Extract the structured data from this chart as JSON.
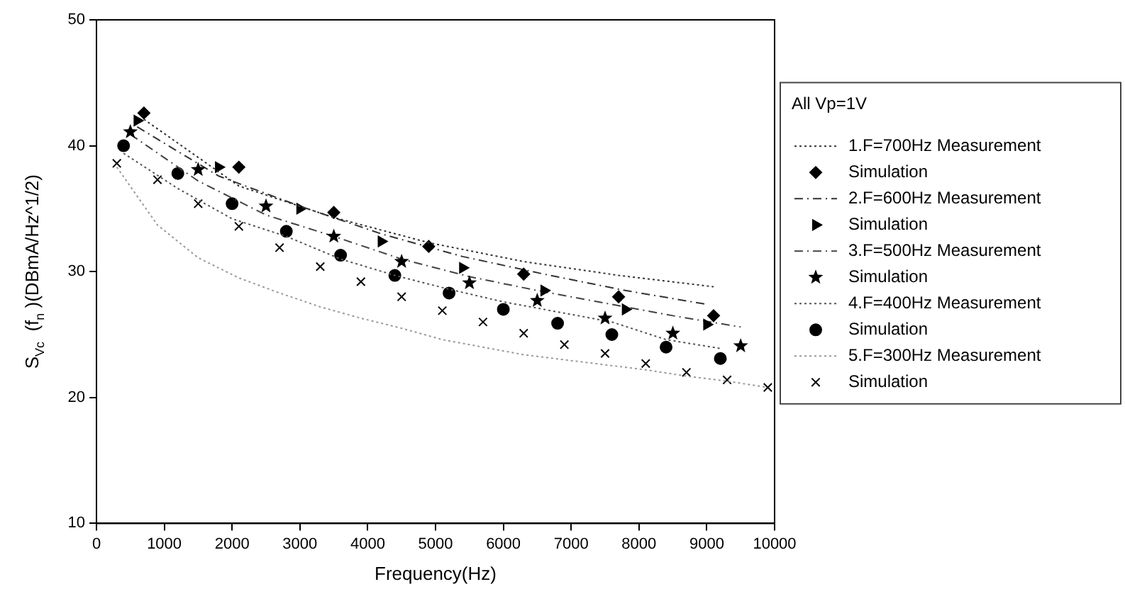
{
  "chart_data": {
    "type": "line",
    "xlabel": "Frequency(Hz)",
    "ylabel": "S$_{Vc}$  (f$_{n}$ )(DBmA/Hz^1/2)",
    "legend_title": "All Vp=1V",
    "legend": "right",
    "grid": false,
    "xlim": [
      0,
      10000
    ],
    "xticks": [
      0,
      1000,
      2000,
      3000,
      4000,
      5000,
      6000,
      7000,
      8000,
      9000,
      10000
    ],
    "ylim": [
      10,
      50
    ],
    "yticks": [
      10,
      20,
      30,
      40,
      50
    ],
    "series": [
      {
        "name": "1.F=700Hz Measurement",
        "type": "line",
        "marker": "none",
        "line_style": "dotted",
        "color": "#333333",
        "x": [
          700,
          2100,
          3500,
          4900,
          6300,
          7700,
          9100
        ],
        "values": [
          42.1,
          36.8,
          34.3,
          32.3,
          30.8,
          29.7,
          28.8
        ]
      },
      {
        "name": "Simulation",
        "type": "scatter",
        "marker": "diamond",
        "color": "#000000",
        "x": [
          700,
          2100,
          3500,
          4900,
          6300,
          7700,
          9100
        ],
        "values": [
          42.6,
          38.3,
          34.7,
          32.0,
          29.8,
          28.0,
          26.5
        ]
      },
      {
        "name": "2.F=600Hz Measurement",
        "type": "line",
        "marker": "none",
        "line_style": "dashed",
        "color": "#333333",
        "x": [
          600,
          1800,
          3000,
          4200,
          5400,
          6600,
          7800,
          9000
        ],
        "values": [
          41.5,
          37.6,
          35.2,
          33.0,
          31.2,
          29.8,
          28.5,
          27.4
        ]
      },
      {
        "name": "Simulation",
        "type": "scatter",
        "marker": "triangle",
        "color": "#000000",
        "x": [
          600,
          1800,
          3000,
          4200,
          5400,
          6600,
          7800,
          9000
        ],
        "values": [
          42.0,
          38.3,
          35.0,
          32.4,
          30.3,
          28.5,
          27.0,
          25.8
        ]
      },
      {
        "name": "3.F=500Hz Measurement",
        "type": "line",
        "marker": "none",
        "line_style": "dashed",
        "color": "#444444",
        "x": [
          500,
          1500,
          2500,
          3500,
          4500,
          5500,
          6500,
          7500,
          8500,
          9500
        ],
        "values": [
          40.9,
          37.2,
          34.5,
          32.8,
          31.0,
          29.6,
          28.5,
          27.5,
          26.5,
          25.6
        ]
      },
      {
        "name": "Simulation",
        "type": "scatter",
        "marker": "star",
        "color": "#000000",
        "x": [
          500,
          1500,
          2500,
          3500,
          4500,
          5500,
          6500,
          7500,
          8500,
          9500
        ],
        "values": [
          41.1,
          38.1,
          35.2,
          32.8,
          30.8,
          29.1,
          27.7,
          26.3,
          25.1,
          24.1
        ]
      },
      {
        "name": "4.F=400Hz Measurement",
        "type": "line",
        "marker": "none",
        "line_style": "dotted",
        "color": "#555555",
        "x": [
          400,
          1200,
          2000,
          2800,
          3600,
          4400,
          5200,
          6000,
          6800,
          7600,
          8400,
          9200
        ],
        "values": [
          39.4,
          36.6,
          34.2,
          32.8,
          31.0,
          29.7,
          28.6,
          27.6,
          26.8,
          26.0,
          24.6,
          23.9
        ]
      },
      {
        "name": "Simulation",
        "type": "scatter",
        "marker": "circle",
        "color": "#000000",
        "x": [
          400,
          1200,
          2000,
          2800,
          3600,
          4400,
          5200,
          6000,
          6800,
          7600,
          8400,
          9200
        ],
        "values": [
          40.0,
          37.8,
          35.4,
          33.2,
          31.3,
          29.7,
          28.3,
          27.0,
          25.9,
          25.0,
          24.0,
          23.1
        ]
      },
      {
        "name": "5.F=300Hz Measurement",
        "type": "line",
        "marker": "none",
        "line_style": "dotted",
        "color": "#999999",
        "x": [
          300,
          900,
          1500,
          2100,
          2700,
          3300,
          3900,
          4500,
          5100,
          5700,
          6300,
          6900,
          7500,
          8100,
          8700,
          9300,
          9900
        ],
        "values": [
          38.3,
          33.7,
          31.1,
          29.5,
          28.3,
          27.2,
          26.3,
          25.5,
          24.6,
          24.0,
          23.4,
          23.0,
          22.6,
          22.2,
          21.7,
          21.3,
          20.8
        ]
      },
      {
        "name": "Simulation",
        "type": "scatter",
        "marker": "cross",
        "color": "#000000",
        "x": [
          300,
          900,
          1500,
          2100,
          2700,
          3300,
          3900,
          4500,
          5100,
          5700,
          6300,
          6900,
          7500,
          8100,
          8700,
          9300,
          9900
        ],
        "values": [
          38.6,
          37.3,
          35.4,
          33.6,
          31.9,
          30.4,
          29.2,
          28.0,
          26.9,
          26.0,
          25.1,
          24.2,
          23.5,
          22.7,
          22.0,
          21.4,
          20.8
        ]
      }
    ]
  }
}
